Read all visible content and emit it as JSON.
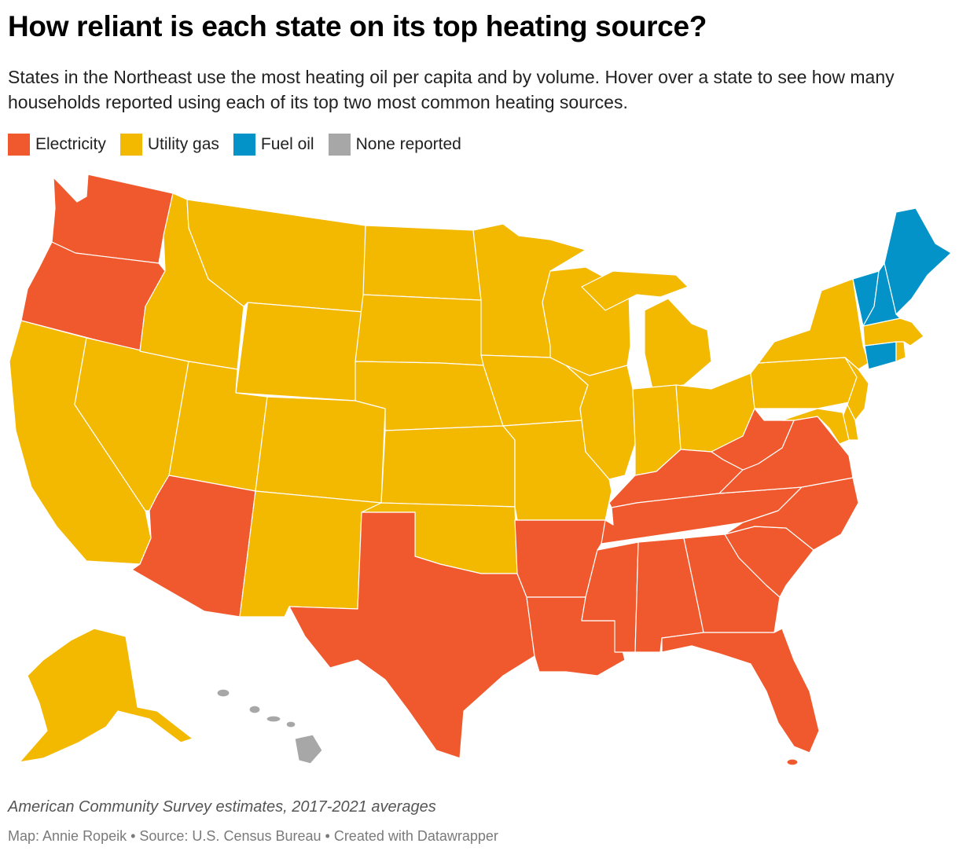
{
  "title": "How reliant is each state on its top heating source?",
  "subtitle": "States in the Northeast use the most heating oil per capita and by volume. Hover over a state to see how many households reported using each of its top two most common heating sources.",
  "legend": [
    {
      "label": "Electricity",
      "color": "#f0592d"
    },
    {
      "label": "Utility gas",
      "color": "#f3b800"
    },
    {
      "label": "Fuel oil",
      "color": "#0393c8"
    },
    {
      "label": "None reported",
      "color": "#a7a7a7"
    }
  ],
  "map": {
    "states": [
      {
        "state": "WA",
        "category": "Electricity"
      },
      {
        "state": "OR",
        "category": "Electricity"
      },
      {
        "state": "CA",
        "category": "Utility gas"
      },
      {
        "state": "NV",
        "category": "Utility gas"
      },
      {
        "state": "ID",
        "category": "Utility gas"
      },
      {
        "state": "MT",
        "category": "Utility gas"
      },
      {
        "state": "WY",
        "category": "Utility gas"
      },
      {
        "state": "UT",
        "category": "Utility gas"
      },
      {
        "state": "CO",
        "category": "Utility gas"
      },
      {
        "state": "AZ",
        "category": "Electricity"
      },
      {
        "state": "NM",
        "category": "Utility gas"
      },
      {
        "state": "ND",
        "category": "Utility gas"
      },
      {
        "state": "SD",
        "category": "Utility gas"
      },
      {
        "state": "NE",
        "category": "Utility gas"
      },
      {
        "state": "KS",
        "category": "Utility gas"
      },
      {
        "state": "OK",
        "category": "Utility gas"
      },
      {
        "state": "TX",
        "category": "Electricity"
      },
      {
        "state": "MN",
        "category": "Utility gas"
      },
      {
        "state": "IA",
        "category": "Utility gas"
      },
      {
        "state": "MO",
        "category": "Utility gas"
      },
      {
        "state": "AR",
        "category": "Electricity"
      },
      {
        "state": "LA",
        "category": "Electricity"
      },
      {
        "state": "WI",
        "category": "Utility gas"
      },
      {
        "state": "IL",
        "category": "Utility gas"
      },
      {
        "state": "MI",
        "category": "Utility gas"
      },
      {
        "state": "IN",
        "category": "Utility gas"
      },
      {
        "state": "OH",
        "category": "Utility gas"
      },
      {
        "state": "KY",
        "category": "Electricity"
      },
      {
        "state": "TN",
        "category": "Electricity"
      },
      {
        "state": "MS",
        "category": "Electricity"
      },
      {
        "state": "AL",
        "category": "Electricity"
      },
      {
        "state": "GA",
        "category": "Electricity"
      },
      {
        "state": "FL",
        "category": "Electricity"
      },
      {
        "state": "SC",
        "category": "Electricity"
      },
      {
        "state": "NC",
        "category": "Electricity"
      },
      {
        "state": "VA",
        "category": "Electricity"
      },
      {
        "state": "WV",
        "category": "Electricity"
      },
      {
        "state": "PA",
        "category": "Utility gas"
      },
      {
        "state": "NY",
        "category": "Utility gas"
      },
      {
        "state": "NJ",
        "category": "Utility gas"
      },
      {
        "state": "DE",
        "category": "Utility gas"
      },
      {
        "state": "MD",
        "category": "Utility gas"
      },
      {
        "state": "CT",
        "category": "Fuel oil"
      },
      {
        "state": "RI",
        "category": "Utility gas"
      },
      {
        "state": "MA",
        "category": "Utility gas"
      },
      {
        "state": "VT",
        "category": "Fuel oil"
      },
      {
        "state": "NH",
        "category": "Fuel oil"
      },
      {
        "state": "ME",
        "category": "Fuel oil"
      },
      {
        "state": "AK",
        "category": "Utility gas"
      },
      {
        "state": "HI",
        "category": "None reported"
      }
    ]
  },
  "notes": "American Community Survey estimates, 2017-2021 averages",
  "credits": "Map: Annie Ropeik • Source: U.S. Census Bureau • Created with Datawrapper"
}
